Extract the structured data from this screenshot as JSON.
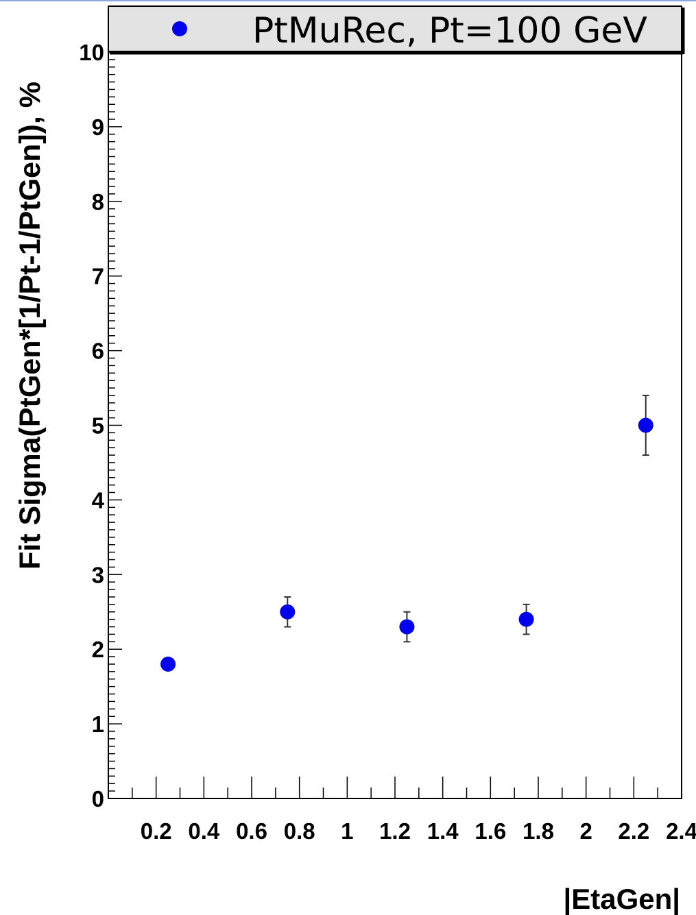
{
  "chart_data": {
    "type": "scatter",
    "xlabel": "|EtaGen|",
    "ylabel": "Fit Sigma(PtGen*[1/Pt-1/PtGen]), %",
    "xlim": [
      0,
      2.4
    ],
    "ylim": [
      0,
      10
    ],
    "x_tick_labels": [
      "0.2",
      "0.4",
      "0.6",
      "0.8",
      "1",
      "1.2",
      "1.4",
      "1.6",
      "1.8",
      "2",
      "2.2",
      "2.4"
    ],
    "y_tick_labels": [
      "0",
      "1",
      "2",
      "3",
      "4",
      "5",
      "6",
      "7",
      "8",
      "9",
      "10"
    ],
    "legend": {
      "position": "top",
      "entries": [
        "PtMuRec, Pt=100 GeV"
      ]
    },
    "grid": false,
    "marker_color": "#0000ee",
    "series": [
      {
        "name": "PtMuRec, Pt=100 GeV",
        "x": [
          0.25,
          0.75,
          1.25,
          1.75,
          2.25
        ],
        "y": [
          1.8,
          2.5,
          2.3,
          2.4,
          5.0
        ],
        "yerr": [
          0.05,
          0.2,
          0.2,
          0.2,
          0.4
        ]
      }
    ]
  }
}
